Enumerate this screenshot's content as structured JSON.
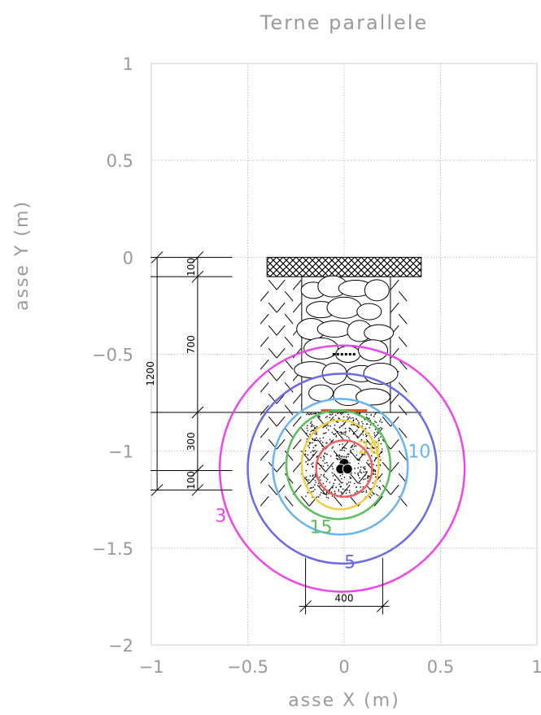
{
  "chart_data": {
    "type": "contour",
    "title": "Terne parallele",
    "xlabel": "asse X (m)",
    "ylabel": "asse Y (m)",
    "xlim": [
      -1,
      1
    ],
    "ylim": [
      -2,
      1
    ],
    "xticks": [
      -1,
      -0.5,
      0,
      0.5,
      1
    ],
    "yticks": [
      1,
      0.5,
      0,
      -0.5,
      -1,
      -1.5,
      -2
    ],
    "xtick_labels": [
      "−1",
      "−0.5",
      "0",
      "0.5",
      "1"
    ],
    "ytick_labels": [
      "1",
      "0.5",
      "0",
      "−0.5",
      "−1",
      "−1.5",
      "−2"
    ],
    "grid": true,
    "cable_center": [
      0,
      -1.08
    ],
    "contours": [
      {
        "label": "3",
        "color": "#ee44ee",
        "center": [
          -0.01,
          -1.09
        ],
        "rx": 0.635,
        "ry": 0.635,
        "label_pos": [
          -0.64,
          -1.33
        ]
      },
      {
        "label": "5",
        "color": "#6a6ae8",
        "center": [
          -0.01,
          -1.09
        ],
        "rx": 0.49,
        "ry": 0.49,
        "label_pos": [
          0.03,
          -1.57
        ]
      },
      {
        "label": "10",
        "color": "#66b4f4",
        "center": [
          -0.02,
          -1.08
        ],
        "rx": 0.35,
        "ry": 0.35,
        "label_pos": [
          0.39,
          -1.0
        ]
      },
      {
        "label": "15",
        "color": "#5abf5a",
        "center": [
          -0.03,
          -1.07
        ],
        "rx": 0.27,
        "ry": 0.28,
        "label_pos": [
          -0.12,
          -1.39
        ]
      },
      {
        "label": "20",
        "color": "#f0d040",
        "center": [
          -0.02,
          -1.07
        ],
        "rx": 0.2,
        "ry": 0.23,
        "label_pos": [
          0.13,
          -0.98
        ]
      },
      {
        "label": "",
        "color": "#ee6060",
        "center": [
          0.0,
          -1.09
        ],
        "rx": 0.145,
        "ry": 0.145,
        "label_pos": null
      }
    ],
    "dimensions": {
      "total_depth": "1200",
      "top_layer": "100",
      "fill_layer": "700",
      "sand_layer": "300",
      "bottom_layer": "100",
      "trench_width": "400"
    }
  }
}
